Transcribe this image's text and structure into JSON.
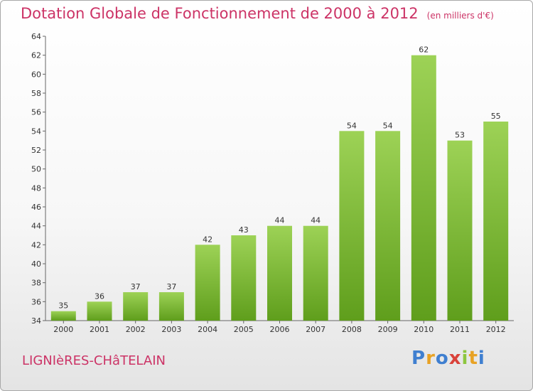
{
  "header": {
    "title": "Dotation Globale de Fonctionnement de 2000 à 2012",
    "unit": "(en milliers d'€)"
  },
  "footer": {
    "commune": "LIGNIèRES-CHâTELAIN",
    "logo": "Proxiti"
  },
  "colors": {
    "title": "#cc3366",
    "bar_top": "#9dd256",
    "bar_bottom": "#5f9e1c"
  },
  "chart_data": {
    "type": "bar",
    "title": "Dotation Globale de Fonctionnement de 2000 à 2012",
    "subtitle": "(en milliers d'€)",
    "categories": [
      "2000",
      "2001",
      "2002",
      "2003",
      "2004",
      "2005",
      "2006",
      "2007",
      "2008",
      "2009",
      "2010",
      "2011",
      "2012"
    ],
    "values": [
      35,
      36,
      37,
      37,
      42,
      43,
      44,
      44,
      54,
      54,
      62,
      53,
      55
    ],
    "ylim": [
      34,
      64
    ],
    "yticks": [
      34,
      36,
      38,
      40,
      42,
      44,
      46,
      48,
      50,
      52,
      54,
      56,
      58,
      60,
      62,
      64
    ],
    "grid": false,
    "legend": "none"
  }
}
